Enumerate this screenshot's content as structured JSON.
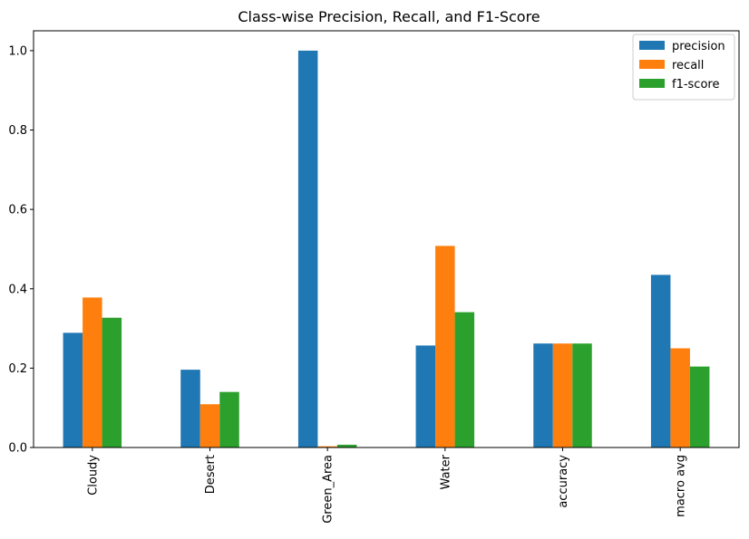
{
  "chart_data": {
    "type": "bar",
    "title": "Class-wise Precision, Recall, and F1-Score",
    "xlabel": "",
    "ylabel": "",
    "categories": [
      "Cloudy",
      "Desert",
      "Green_Area",
      "Water",
      "accuracy",
      "macro avg"
    ],
    "ylim": [
      0,
      1.05
    ],
    "yticks": [
      "0.0",
      "0.2",
      "0.4",
      "0.6",
      "0.8",
      "1.0"
    ],
    "grid": false,
    "legend_position": "top-right",
    "series": [
      {
        "name": "precision",
        "color": "#1f77b4",
        "values": [
          0.289,
          0.196,
          1.0,
          0.257,
          0.262,
          0.435
        ]
      },
      {
        "name": "recall",
        "color": "#ff7f0e",
        "values": [
          0.378,
          0.109,
          0.003,
          0.508,
          0.262,
          0.25
        ]
      },
      {
        "name": "f1-score",
        "color": "#2ca02c",
        "values": [
          0.327,
          0.14,
          0.007,
          0.341,
          0.262,
          0.204
        ]
      }
    ]
  }
}
